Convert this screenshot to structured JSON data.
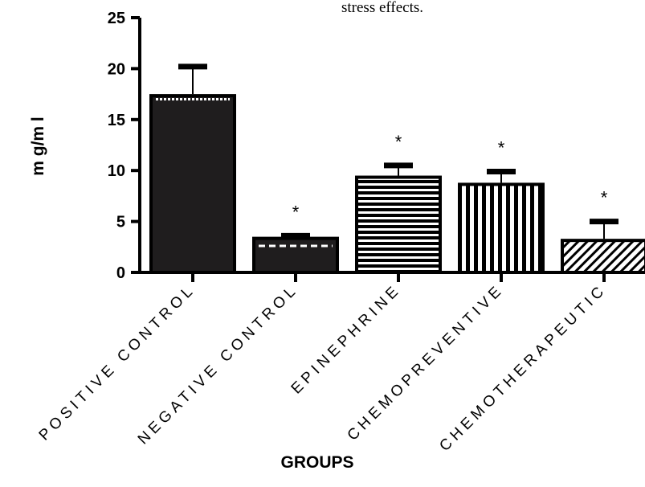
{
  "caption_fragment": "stress effects.",
  "chart_data": {
    "type": "bar",
    "ylabel": "m g/m l",
    "xlabel": "GROUPS",
    "ylim": [
      0,
      25
    ],
    "yticks": [
      "0",
      "5",
      "10",
      "15",
      "20",
      "25"
    ],
    "categories": [
      "POSITIVE CONTROL",
      "NEGATIVE CONTROL",
      "EPINEPHRINE",
      "CHEMOPREVENTIVE",
      "CHEMOTHERAPEUTIC"
    ],
    "values": [
      17.5,
      3.5,
      9.5,
      8.8,
      3.3
    ],
    "error_upper": [
      20.2,
      3.6,
      10.5,
      9.9,
      5.0
    ],
    "significance": [
      "",
      "*",
      "*",
      "*",
      "*"
    ],
    "patterns": [
      "solid",
      "dotted-solid",
      "horizontal-lines",
      "vertical-lines",
      "diagonal-lines"
    ]
  }
}
